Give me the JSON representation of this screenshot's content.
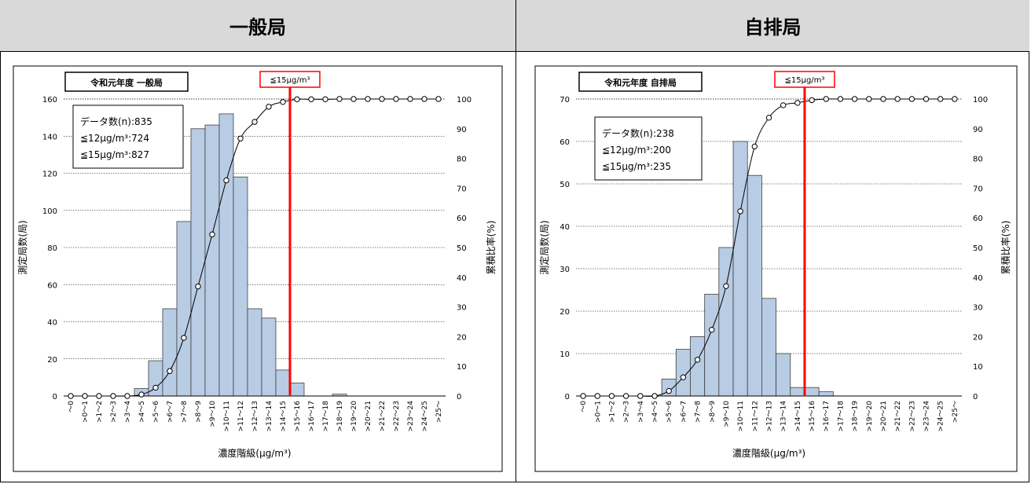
{
  "panels": [
    {
      "header": "一般局"
    },
    {
      "header": "自排局"
    }
  ],
  "chart_data": [
    {
      "type": "bar",
      "title": "令和元年度 一般局",
      "threshold_label": "≦15μg/m³",
      "threshold_color": "#ff0000",
      "bar_color": "#b8cce4",
      "stats": [
        "データ数(n):835",
        "≦12μg/m³:724",
        "≦15μg/m³:827"
      ],
      "xlabel": "濃度階級(μg/m³)",
      "ylabel": "測定局数(局)",
      "y2label": "累積比率(%)",
      "ylim": [
        0,
        160
      ],
      "yticks": [
        "0",
        "20",
        "40",
        "60",
        "80",
        "100",
        "120",
        "140",
        "160"
      ],
      "y2ticks": [
        "0",
        "10",
        "20",
        "30",
        "40",
        "50",
        "60",
        "70",
        "80",
        "90",
        "100"
      ],
      "categories": [
        "～0",
        ">0～1",
        ">1～2",
        ">2～3",
        ">3～4",
        ">4～5",
        ">5～6",
        ">6～7",
        ">7～8",
        ">8～9",
        ">9～10",
        ">10～11",
        ">11～12",
        ">12～13",
        ">13～14",
        ">14～15",
        ">15～16",
        ">16～17",
        ">17～18",
        ">18～19",
        ">19～20",
        ">20～21",
        ">21～22",
        ">22～23",
        ">23～24",
        ">24～25",
        ">25～"
      ],
      "values": [
        0,
        0,
        0,
        0,
        0,
        4,
        19,
        47,
        94,
        144,
        146,
        152,
        118,
        47,
        42,
        14,
        7,
        0,
        0,
        1,
        0,
        0,
        0,
        0,
        0,
        0,
        0
      ],
      "cumulative_percent": [
        0,
        0,
        0,
        0,
        0,
        0.5,
        2.8,
        8.4,
        19.6,
        36.9,
        54.4,
        72.6,
        86.7,
        92.3,
        97.4,
        99.0,
        99.9,
        99.9,
        99.9,
        100,
        100,
        100,
        100,
        100,
        100,
        100,
        100
      ],
      "threshold_category": ">14～15"
    },
    {
      "type": "bar",
      "title": "令和元年度 自排局",
      "threshold_label": "≦15μg/m³",
      "threshold_color": "#ff0000",
      "bar_color": "#b8cce4",
      "stats": [
        "データ数(n):238",
        "≦12μg/m³:200",
        "≦15μg/m³:235"
      ],
      "xlabel": "濃度階級(μg/m³)",
      "ylabel": "測定局数(局)",
      "y2label": "累積比率(%)",
      "ylim": [
        0,
        70
      ],
      "yticks": [
        "0",
        "10",
        "20",
        "30",
        "40",
        "50",
        "60",
        "70"
      ],
      "y2ticks": [
        "0",
        "10",
        "20",
        "30",
        "40",
        "50",
        "60",
        "70",
        "80",
        "90",
        "100"
      ],
      "categories": [
        "～0",
        ">0～1",
        ">1～2",
        ">2～3",
        ">3～4",
        ">4～5",
        ">5～6",
        ">6～7",
        ">7～8",
        ">8～9",
        ">9～10",
        ">10～11",
        ">11～12",
        ">12～13",
        ">13～14",
        ">14～15",
        ">15～16",
        ">16～17",
        ">17～18",
        ">18～19",
        ">19～20",
        ">20～21",
        ">21～22",
        ">22～23",
        ">23～24",
        ">24～25",
        ">25～"
      ],
      "values": [
        0,
        0,
        0,
        0,
        0,
        0,
        4,
        11,
        14,
        24,
        35,
        60,
        52,
        23,
        10,
        2,
        2,
        1,
        0,
        0,
        0,
        0,
        0,
        0,
        0,
        0,
        0
      ],
      "cumulative_percent": [
        0,
        0,
        0,
        0,
        0,
        0,
        1.7,
        6.3,
        12.2,
        22.3,
        37.0,
        62.2,
        84.0,
        93.7,
        97.9,
        98.7,
        99.6,
        100,
        100,
        100,
        100,
        100,
        100,
        100,
        100,
        100,
        100
      ],
      "threshold_category": ">14～15"
    }
  ]
}
